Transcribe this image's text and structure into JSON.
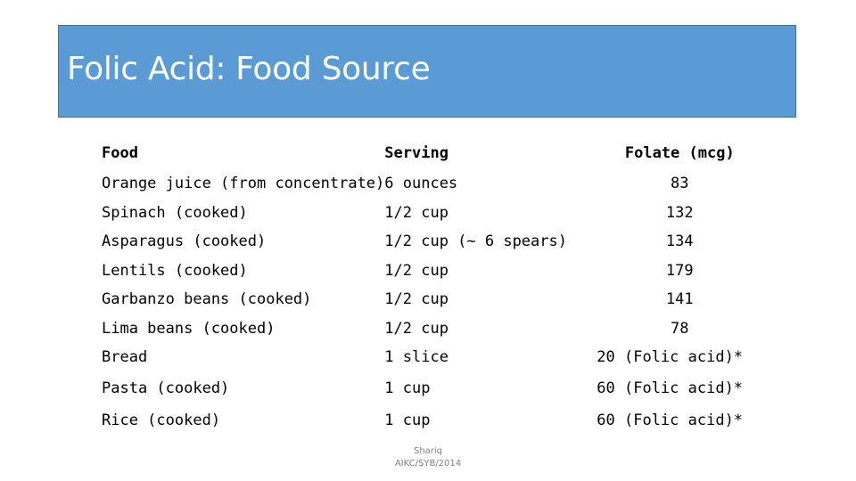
{
  "slide": {
    "title": "Folic Acid: Food Source",
    "title_bg_color": "#5b9bd5"
  },
  "table": {
    "headers": {
      "food": "Food",
      "serving": "Serving",
      "folate": "Folate (mcg)"
    },
    "rows": [
      {
        "food": "Orange juice (from concentrate)",
        "serving": "6 ounces",
        "folate": "83"
      },
      {
        "food": "Spinach (cooked)",
        "serving": "1/2 cup",
        "folate": "132"
      },
      {
        "food": "Asparagus (cooked)",
        "serving": "1/2 cup (~ 6 spears)",
        "folate": "134"
      },
      {
        "food": "Lentils (cooked)",
        "serving": "1/2 cup",
        "folate": "179"
      },
      {
        "food": "Garbanzo beans (cooked)",
        "serving": "1/2 cup",
        "folate": "141"
      },
      {
        "food": "Lima beans (cooked)",
        "serving": "1/2 cup",
        "folate": "78"
      },
      {
        "food": "Bread",
        "serving": "1 slice",
        "folate": "20 (Folic acid)*"
      },
      {
        "food": "Pasta (cooked)",
        "serving": "1 cup",
        "folate": "60 (Folic acid)*"
      },
      {
        "food": "Rice (cooked)",
        "serving": "1 cup",
        "folate": "60 (Folic acid)*"
      }
    ]
  },
  "footer": {
    "line1": "Shariq",
    "line2": "AIKC/SYB/2014"
  }
}
